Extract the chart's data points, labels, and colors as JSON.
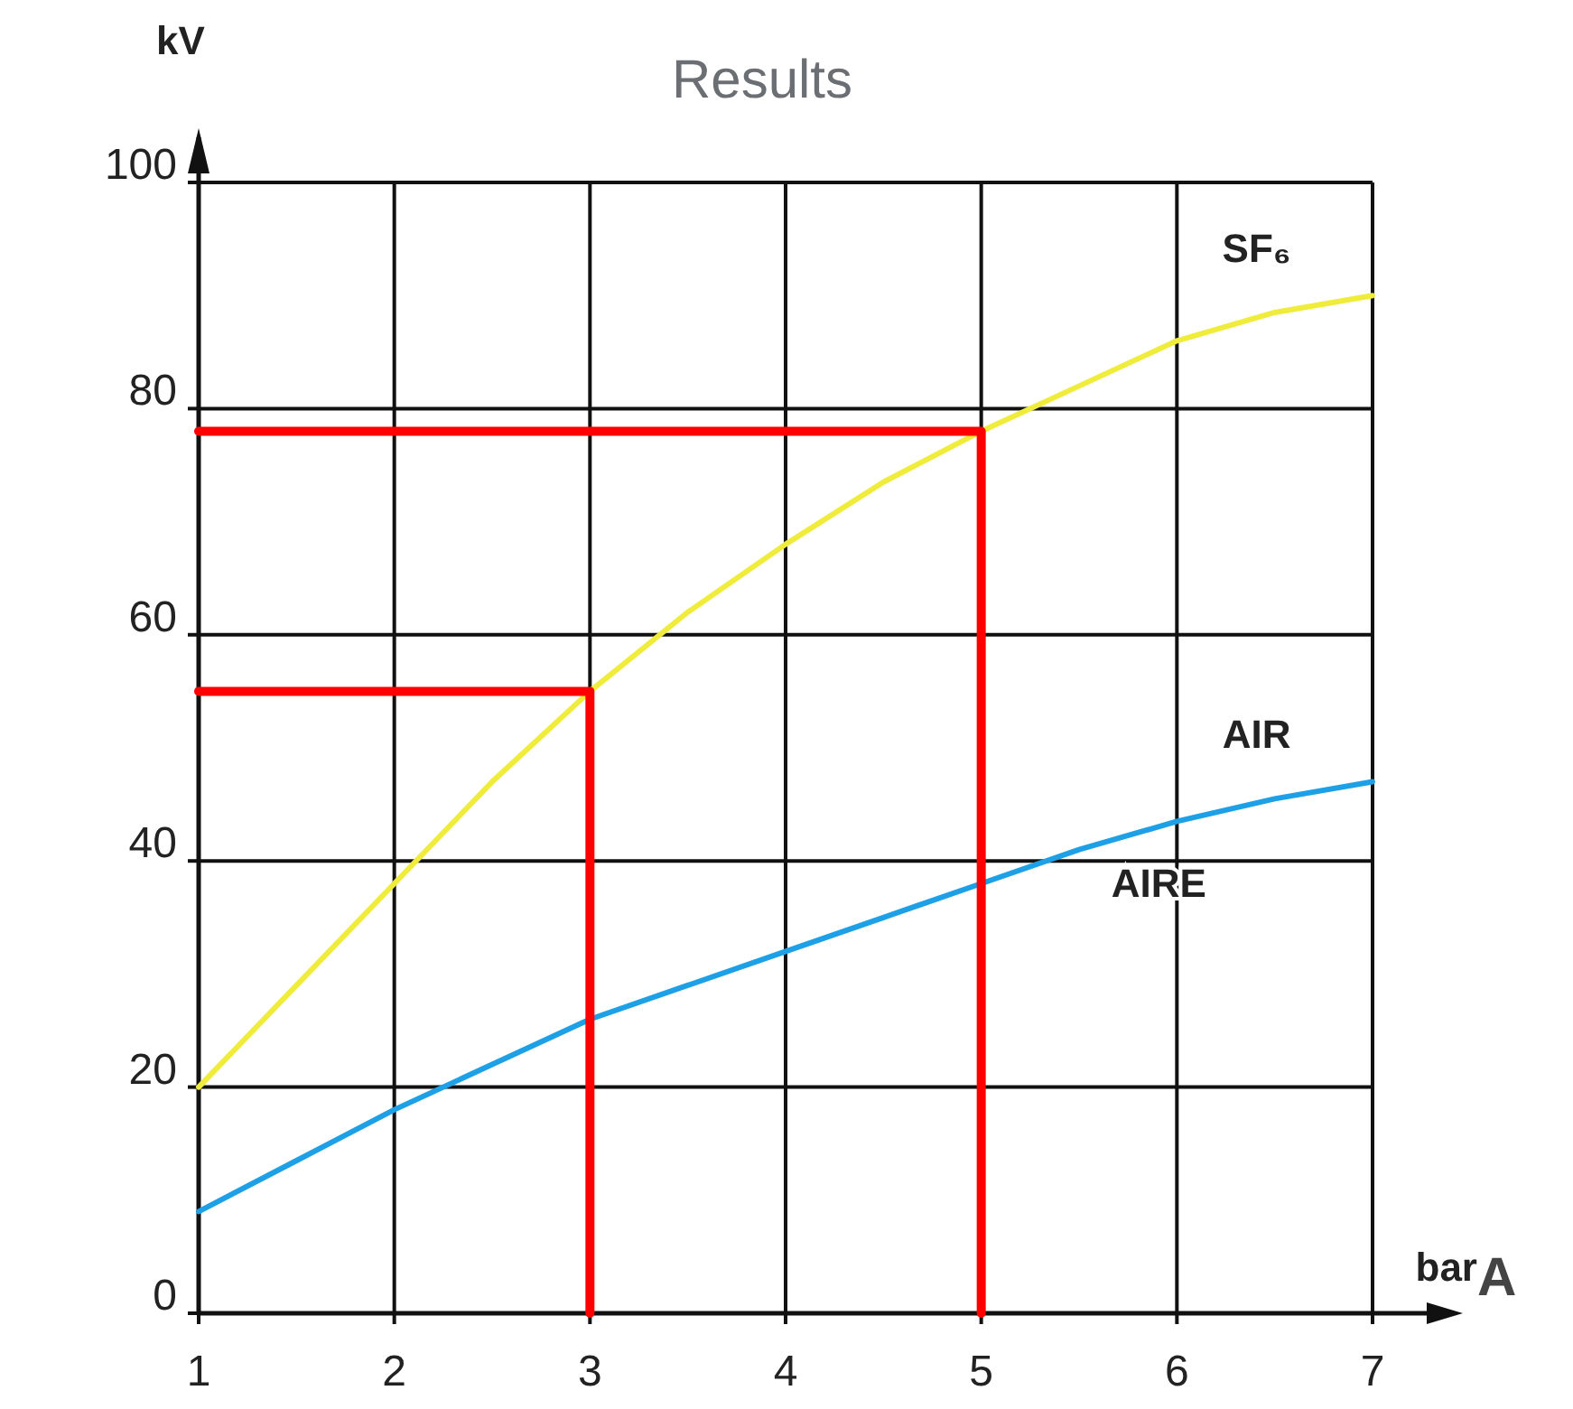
{
  "chart_data": {
    "type": "line",
    "title": "Results",
    "xlabel": "bar",
    "ylabel": "kV",
    "xlim": [
      1,
      7
    ],
    "xticks": [
      1,
      2,
      3,
      4,
      5,
      6,
      7
    ],
    "ylim": [
      0,
      100
    ],
    "yticks": [
      0,
      20,
      40,
      60,
      80,
      100
    ],
    "grid": true,
    "annotations": [
      "AIRE",
      "A"
    ],
    "series": [
      {
        "name": "SF₆",
        "color": "#f0ec3c",
        "x": [
          1,
          1.5,
          2,
          2.5,
          3,
          3.5,
          4,
          4.5,
          5,
          5.5,
          6,
          6.5,
          7
        ],
        "values": [
          20,
          29,
          38,
          47,
          55,
          62,
          68,
          73.5,
          78,
          82,
          86,
          88.5,
          90
        ]
      },
      {
        "name": "AIR",
        "color": "#1ea0e6",
        "x": [
          1,
          1.5,
          2,
          2.5,
          3,
          3.5,
          4,
          4.5,
          5,
          5.5,
          6,
          6.5,
          7
        ],
        "values": [
          9,
          13.5,
          18,
          22,
          26,
          29,
          32,
          35,
          38,
          41,
          43.5,
          45.5,
          47
        ]
      },
      {
        "color": "#ff0000",
        "x": [
          1,
          3,
          3
        ],
        "values": [
          55,
          55,
          0
        ]
      },
      {
        "color": "#ff0000",
        "x": [
          1,
          5,
          5
        ],
        "values": [
          78,
          78,
          0
        ]
      }
    ]
  }
}
